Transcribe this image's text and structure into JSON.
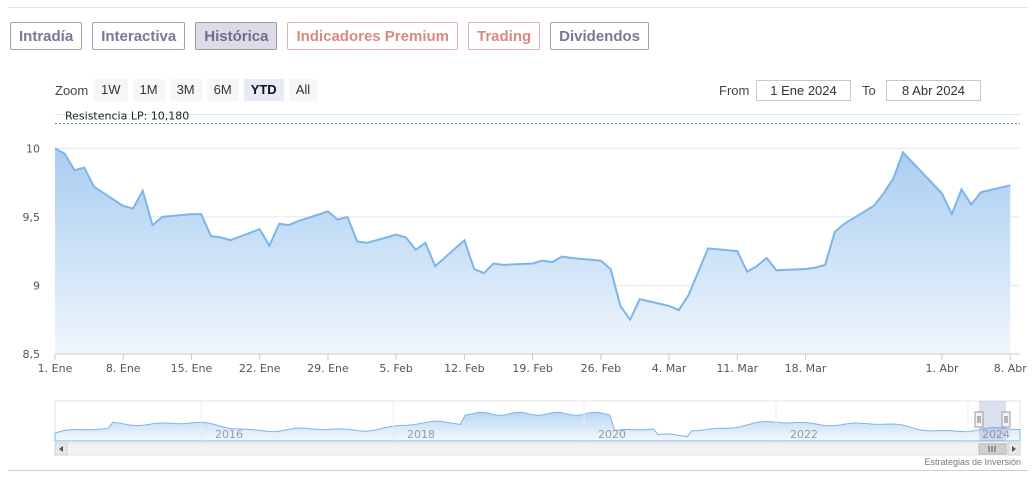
{
  "tabs": [
    {
      "label": "Intradía",
      "style": "purple"
    },
    {
      "label": "Interactiva",
      "style": "purple"
    },
    {
      "label": "Histórica",
      "style": "active"
    },
    {
      "label": "Indicadores Premium",
      "style": "salmon"
    },
    {
      "label": "Trading",
      "style": "salmon"
    },
    {
      "label": "Dividendos",
      "style": "purple"
    }
  ],
  "range_selector": {
    "zoom_label": "Zoom",
    "buttons": [
      "1W",
      "1M",
      "3M",
      "6M",
      "YTD",
      "All"
    ],
    "selected": "YTD",
    "from_label": "From",
    "from_value": "1 Ene 2024",
    "to_label": "To",
    "to_value": "8 Abr 2024"
  },
  "chart_data": {
    "type": "area",
    "title": "",
    "xlabel": "",
    "ylabel": "",
    "ylim": [
      8.5,
      10.25
    ],
    "yticks": [
      8.5,
      9,
      9.5,
      10
    ],
    "ytick_labels": [
      "8,5",
      "9",
      "9,5",
      "10"
    ],
    "xticks": [
      {
        "date": "2024-01-01",
        "label": "1. Ene"
      },
      {
        "date": "2024-01-08",
        "label": "8. Ene"
      },
      {
        "date": "2024-01-15",
        "label": "15. Ene"
      },
      {
        "date": "2024-01-22",
        "label": "22. Ene"
      },
      {
        "date": "2024-01-29",
        "label": "29. Ene"
      },
      {
        "date": "2024-02-05",
        "label": "5. Feb"
      },
      {
        "date": "2024-02-12",
        "label": "12. Feb"
      },
      {
        "date": "2024-02-19",
        "label": "19. Feb"
      },
      {
        "date": "2024-02-26",
        "label": "26. Feb"
      },
      {
        "date": "2024-03-04",
        "label": "4. Mar"
      },
      {
        "date": "2024-03-11",
        "label": "11. Mar"
      },
      {
        "date": "2024-03-18",
        "label": "18. Mar"
      },
      {
        "date": "2024-04-01",
        "label": "1. Abr"
      },
      {
        "date": "2024-04-08",
        "label": "8. Abr"
      }
    ],
    "grid": true,
    "resistance": {
      "label": "Resistencia LP: 10,180",
      "value": 10.18
    },
    "series": [
      {
        "points": [
          [
            "2024-01-01",
            10.0
          ],
          [
            "2024-01-02",
            9.96
          ],
          [
            "2024-01-03",
            9.84
          ],
          [
            "2024-01-04",
            9.86
          ],
          [
            "2024-01-05",
            9.72
          ],
          [
            "2024-01-08",
            9.58
          ],
          [
            "2024-01-09",
            9.56
          ],
          [
            "2024-01-10",
            9.69
          ],
          [
            "2024-01-11",
            9.44
          ],
          [
            "2024-01-12",
            9.5
          ],
          [
            "2024-01-15",
            9.52
          ],
          [
            "2024-01-16",
            9.52
          ],
          [
            "2024-01-17",
            9.36
          ],
          [
            "2024-01-18",
            9.35
          ],
          [
            "2024-01-19",
            9.33
          ],
          [
            "2024-01-22",
            9.41
          ],
          [
            "2024-01-23",
            9.29
          ],
          [
            "2024-01-24",
            9.45
          ],
          [
            "2024-01-25",
            9.44
          ],
          [
            "2024-01-26",
            9.47
          ],
          [
            "2024-01-29",
            9.54
          ],
          [
            "2024-01-30",
            9.48
          ],
          [
            "2024-01-31",
            9.5
          ],
          [
            "2024-02-01",
            9.32
          ],
          [
            "2024-02-02",
            9.31
          ],
          [
            "2024-02-05",
            9.37
          ],
          [
            "2024-02-06",
            9.35
          ],
          [
            "2024-02-07",
            9.26
          ],
          [
            "2024-02-08",
            9.31
          ],
          [
            "2024-02-09",
            9.14
          ],
          [
            "2024-02-12",
            9.33
          ],
          [
            "2024-02-13",
            9.12
          ],
          [
            "2024-02-14",
            9.09
          ],
          [
            "2024-02-15",
            9.16
          ],
          [
            "2024-02-16",
            9.15
          ],
          [
            "2024-02-19",
            9.16
          ],
          [
            "2024-02-20",
            9.18
          ],
          [
            "2024-02-21",
            9.17
          ],
          [
            "2024-02-22",
            9.21
          ],
          [
            "2024-02-23",
            9.2
          ],
          [
            "2024-02-26",
            9.18
          ],
          [
            "2024-02-27",
            9.12
          ],
          [
            "2024-02-28",
            8.85
          ],
          [
            "2024-02-29",
            8.75
          ],
          [
            "2024-03-01",
            8.9
          ],
          [
            "2024-03-04",
            8.85
          ],
          [
            "2024-03-05",
            8.82
          ],
          [
            "2024-03-06",
            8.93
          ],
          [
            "2024-03-07",
            9.1
          ],
          [
            "2024-03-08",
            9.27
          ],
          [
            "2024-03-11",
            9.25
          ],
          [
            "2024-03-12",
            9.1
          ],
          [
            "2024-03-13",
            9.14
          ],
          [
            "2024-03-14",
            9.2
          ],
          [
            "2024-03-15",
            9.11
          ],
          [
            "2024-03-18",
            9.12
          ],
          [
            "2024-03-19",
            9.13
          ],
          [
            "2024-03-20",
            9.15
          ],
          [
            "2024-03-21",
            9.39
          ],
          [
            "2024-03-22",
            9.45
          ],
          [
            "2024-03-25",
            9.58
          ],
          [
            "2024-03-26",
            9.67
          ],
          [
            "2024-03-27",
            9.78
          ],
          [
            "2024-03-28",
            9.97
          ],
          [
            "2024-04-01",
            9.67
          ],
          [
            "2024-04-02",
            9.52
          ],
          [
            "2024-04-03",
            9.7
          ],
          [
            "2024-04-04",
            9.59
          ],
          [
            "2024-04-05",
            9.68
          ],
          [
            "2024-04-08",
            9.73
          ]
        ]
      }
    ],
    "navigator": {
      "year_labels": [
        "2016",
        "2018",
        "2020",
        "2022",
        "2024"
      ]
    },
    "colors": {
      "line": "#7cb5ec",
      "fill_top": "#a9cdf1",
      "fill_bottom": "#f0f6fd",
      "resistance": "#3aa33a"
    }
  },
  "credit": "Estrategias de Inversión"
}
